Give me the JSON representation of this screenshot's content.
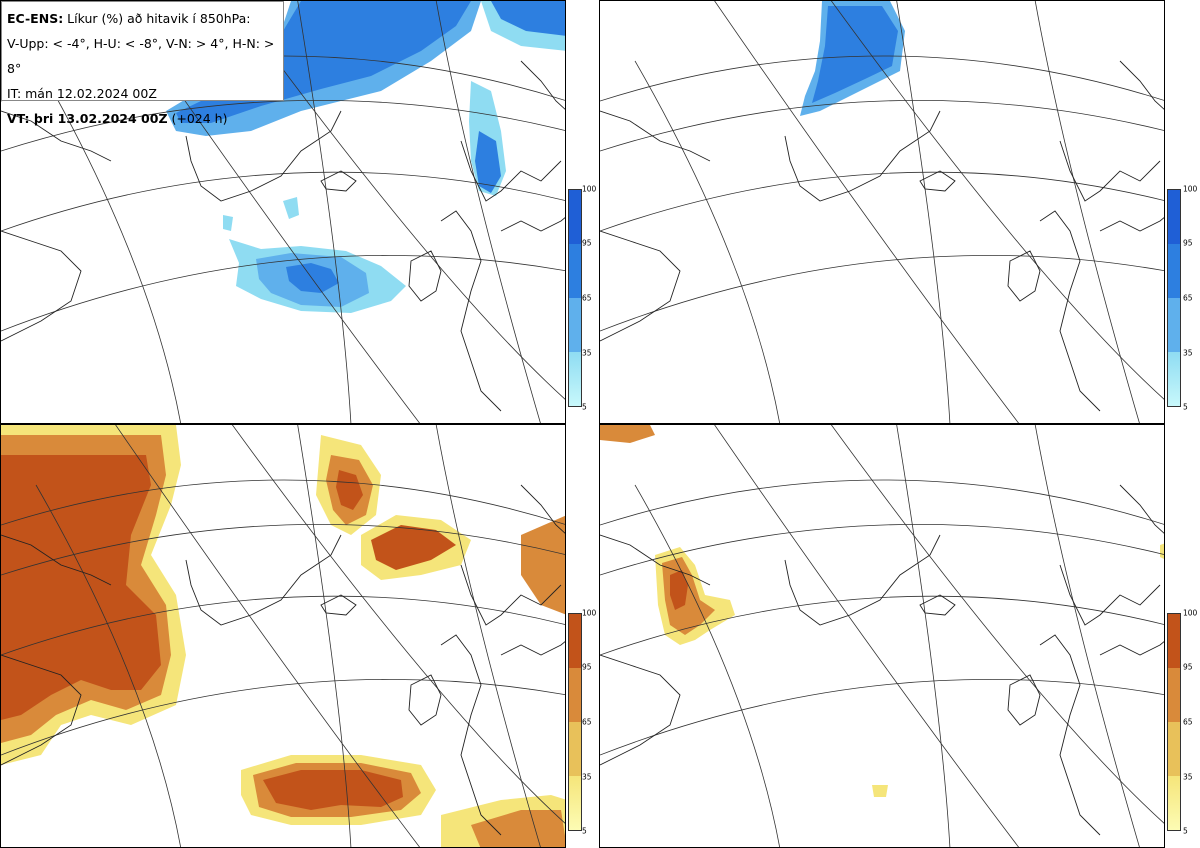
{
  "info": {
    "line1_bold": "EC-ENS:",
    "line1_rest": " Líkur (%) að hitavik í 850hPa:",
    "line2": "V-Upp: < -4°, H-U: < -8°, V-N: > 4°, H-N: > 8°",
    "line3": "IT: mán 12.02.2024 00Z",
    "line4_bold": "VT: þri 13.02.2024 00Z",
    "line4_rest": " (+024 h)"
  },
  "colorbars": {
    "cold": {
      "ticks": [
        "100",
        "95",
        "65",
        "35",
        "5"
      ],
      "colors": [
        "#1f5fd6",
        "#2d7fe0",
        "#5fb0ec",
        "#8fdcf2",
        "#c8f8fb"
      ]
    },
    "warm": {
      "ticks": [
        "100",
        "95",
        "65",
        "35",
        "5"
      ],
      "colors": [
        "#c2531a",
        "#d98a3a",
        "#e8c15a",
        "#f5e57a",
        "#fdfcb4"
      ]
    }
  },
  "panels": {
    "top_left": "V-Upp",
    "top_right": "H-U",
    "bottom_left": "V-N",
    "bottom_right": "H-N"
  }
}
